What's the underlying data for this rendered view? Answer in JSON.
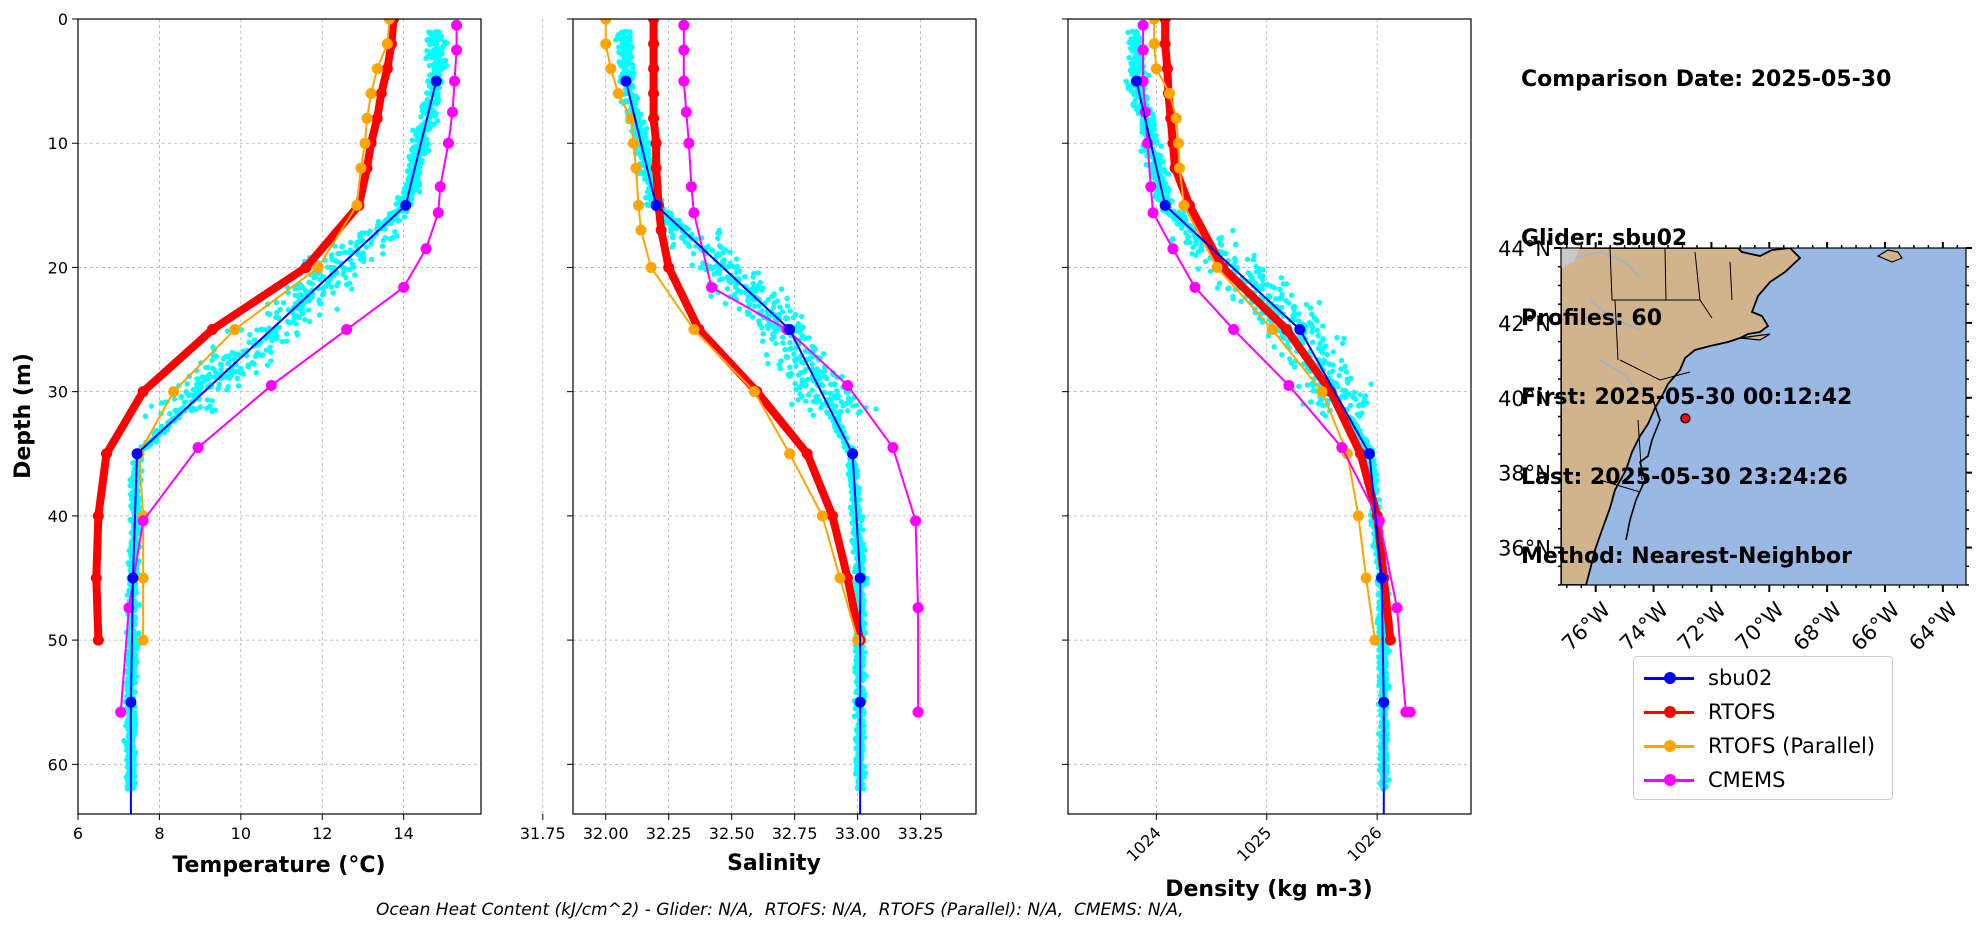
{
  "info": {
    "comparison": "Comparison Date: 2025-05-30",
    "glider": "Glider: sbu02",
    "profiles": "Profiles: 60",
    "first": "First: 2025-05-30 00:12:42",
    "last": "Last: 2025-05-30 23:24:26",
    "method": "Method: Nearest-Neighbor"
  },
  "footer": "Ocean Heat Content (kJ/cm^2) - Glider: N/A,  RTOFS: N/A,  RTOFS (Parallel): N/A,  CMEMS: N/A,",
  "colors": {
    "glider": "#0000ff",
    "rtofs": "#ff0000",
    "parallel": "#ffa500",
    "cmems": "#ff00ff",
    "scatter": "#00ffff",
    "land": "#d2b48c",
    "ocean": "#99b8e3"
  },
  "legend": [
    {
      "name": "sbu02",
      "color": "#0000ff"
    },
    {
      "name": "RTOFS",
      "color": "#ff0000"
    },
    {
      "name": "RTOFS (Parallel)",
      "color": "#ffa500"
    },
    {
      "name": "CMEMS",
      "color": "#ff00ff"
    }
  ],
  "chart_data": [
    {
      "type": "line",
      "xlabel": "Temperature (°C)",
      "ylabel": "Depth (m)",
      "xlim": [
        6,
        15.9
      ],
      "ylim": [
        64,
        0
      ],
      "xticks": [
        "6",
        "8",
        "10",
        "12",
        "14"
      ],
      "yticks": [
        "0",
        "10",
        "20",
        "30",
        "40",
        "50",
        "60"
      ],
      "grid": true,
      "series": [
        {
          "name": "sbu02",
          "x": [
            14.8,
            14.05,
            7.45,
            7.35,
            7.3
          ],
          "y": [
            5,
            15,
            35,
            45,
            55
          ]
        },
        {
          "name": "RTOFS",
          "x": [
            13.75,
            13.7,
            13.6,
            13.45,
            13.35,
            13.2,
            13.1,
            12.9,
            11.6,
            9.3,
            7.6,
            6.7,
            6.5,
            6.45,
            6.5
          ],
          "y": [
            0,
            2,
            4,
            6,
            8,
            10,
            12,
            15,
            20,
            25,
            30,
            35,
            40,
            45,
            50
          ]
        },
        {
          "name": "RTOFS (Parallel)",
          "x": [
            13.65,
            13.6,
            13.35,
            13.2,
            13.1,
            13.05,
            12.95,
            12.85,
            11.9,
            9.85,
            8.35,
            7.5,
            7.6,
            7.6,
            7.6
          ],
          "y": [
            0,
            2,
            4,
            6,
            8,
            10,
            12,
            15,
            20,
            25,
            30,
            35,
            40,
            45,
            50
          ]
        },
        {
          "name": "CMEMS",
          "x": [
            15.3,
            15.3,
            15.25,
            15.2,
            15.1,
            14.9,
            14.85,
            14.55,
            14.0,
            12.6,
            10.75,
            8.95,
            7.6,
            7.25,
            7.05,
            7.05
          ],
          "y": [
            0.5,
            2.5,
            5,
            7.5,
            10,
            13.5,
            15.6,
            18.5,
            21.6,
            25,
            29.5,
            34.5,
            40.4,
            47.4,
            55.8,
            55.8
          ]
        }
      ]
    },
    {
      "type": "line",
      "xlabel": "Salinity",
      "ylabel": "",
      "xlim": [
        31.87,
        33.47
      ],
      "ylim": [
        64,
        0
      ],
      "xticks": [
        "31.75",
        "32.00",
        "32.25",
        "32.50",
        "32.75",
        "33.00",
        "33.25"
      ],
      "yticks": [
        "0",
        "10",
        "20",
        "30",
        "40",
        "50",
        "60"
      ],
      "grid": true,
      "series": [
        {
          "name": "sbu02",
          "x": [
            32.08,
            32.2,
            32.73,
            32.98,
            33.01,
            33.01
          ],
          "y": [
            5,
            15,
            25,
            35,
            45,
            55
          ]
        },
        {
          "name": "RTOFS",
          "x": [
            32.19,
            32.19,
            32.19,
            32.19,
            32.19,
            32.2,
            32.2,
            32.21,
            32.22,
            32.25,
            32.37,
            32.6,
            32.8,
            32.9,
            32.96,
            33.01
          ],
          "y": [
            0,
            2,
            4,
            6,
            8,
            10,
            12,
            15,
            17,
            20,
            25,
            30,
            35,
            40,
            45,
            50
          ]
        },
        {
          "name": "RTOFS (Parallel)",
          "x": [
            32.0,
            32.0,
            32.02,
            32.05,
            32.1,
            32.11,
            32.12,
            32.13,
            32.14,
            32.18,
            32.35,
            32.59,
            32.73,
            32.86,
            32.93,
            33.0
          ],
          "y": [
            0,
            2,
            4,
            6,
            8,
            10,
            12,
            15,
            17,
            20,
            25,
            30,
            35,
            40,
            45,
            50
          ]
        },
        {
          "name": "CMEMS",
          "x": [
            32.31,
            32.31,
            32.31,
            32.32,
            32.33,
            32.34,
            32.35,
            32.42,
            32.72,
            32.96,
            33.14,
            33.23,
            33.24,
            33.24,
            33.24
          ],
          "y": [
            0.5,
            2.5,
            5,
            7.5,
            10,
            13.5,
            15.6,
            21.6,
            25,
            29.5,
            34.5,
            40.4,
            47.4,
            55.8,
            55.8
          ]
        }
      ]
    },
    {
      "type": "line",
      "xlabel": "Density (kg m-3)",
      "ylabel": "",
      "xlim": [
        1023.2,
        1026.85
      ],
      "ylim": [
        64,
        0
      ],
      "xticks": [
        "1024",
        "1025",
        "1026"
      ],
      "yticks": [
        "0",
        "10",
        "20",
        "30",
        "40",
        "50",
        "60"
      ],
      "grid": true,
      "series": [
        {
          "name": "sbu02",
          "x": [
            1023.82,
            1024.08,
            1025.3,
            1025.93,
            1026.04,
            1026.06
          ],
          "y": [
            5,
            15,
            25,
            35,
            45,
            55
          ]
        },
        {
          "name": "RTOFS",
          "x": [
            1024.08,
            1024.08,
            1024.1,
            1024.11,
            1024.13,
            1024.15,
            1024.17,
            1024.3,
            1024.6,
            1025.18,
            1025.58,
            1025.85,
            1026.0,
            1026.06,
            1026.12
          ],
          "y": [
            0,
            2,
            4,
            6,
            8,
            10,
            12,
            15,
            20,
            25,
            30,
            35,
            40,
            45,
            50
          ]
        },
        {
          "name": "RTOFS (Parallel)",
          "x": [
            1023.98,
            1023.98,
            1024.0,
            1024.12,
            1024.18,
            1024.2,
            1024.21,
            1024.25,
            1024.55,
            1025.05,
            1025.5,
            1025.73,
            1025.83,
            1025.9,
            1025.98
          ],
          "y": [
            0,
            2,
            4,
            6,
            8,
            10,
            12,
            15,
            20,
            25,
            30,
            35,
            40,
            45,
            50
          ]
        },
        {
          "name": "CMEMS",
          "x": [
            1023.88,
            1023.88,
            1023.88,
            1023.9,
            1023.92,
            1023.95,
            1023.97,
            1024.15,
            1024.35,
            1024.7,
            1025.2,
            1025.68,
            1026.02,
            1026.18,
            1026.26,
            1026.3
          ],
          "y": [
            0.5,
            2.5,
            5,
            7.5,
            10,
            13.5,
            15.6,
            18.5,
            21.6,
            25,
            29.5,
            34.5,
            40.4,
            47.4,
            55.8,
            55.8
          ]
        }
      ]
    },
    {
      "type": "map",
      "xlim": [
        -77.2,
        -63.2
      ],
      "ylim": [
        35,
        44
      ],
      "xticks": [
        "76°W",
        "74°W",
        "72°W",
        "70°W",
        "68°W",
        "66°W",
        "64°W"
      ],
      "yticks": [
        "44°N",
        "42°N",
        "40°N",
        "38°N",
        "36°N"
      ],
      "point": {
        "lon": -72.9,
        "lat": 39.45
      }
    }
  ]
}
